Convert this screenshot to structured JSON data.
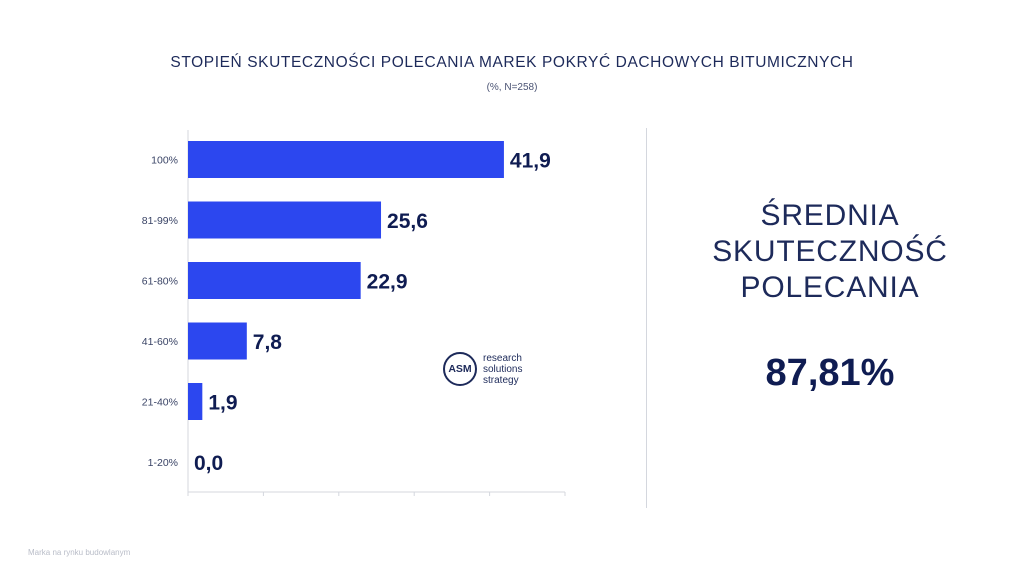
{
  "chart_data": {
    "type": "bar",
    "orientation": "horizontal",
    "title": "STOPIEŃ SKUTECZNOŚCI POLECANIA MAREK POKRYĆ DACHOWYCH BITUMICZNYCH",
    "subtitle": "(%, N=258)",
    "categories": [
      "100%",
      "81-99%",
      "61-80%",
      "41-60%",
      "21-40%",
      "1-20%"
    ],
    "values": [
      41.9,
      25.6,
      22.9,
      7.8,
      1.9,
      0.0
    ],
    "value_labels": [
      "41,9",
      "25,6",
      "22,9",
      "7,8",
      "1,9",
      "0,0"
    ],
    "xlim": [
      0,
      50
    ],
    "bar_color": "#2c47ef",
    "label_color": "#0f1c52"
  },
  "summary": {
    "label": "ŚREDNIA\nSKUTECZNOŚĆ\nPOLECANIA",
    "value": "87,81%"
  },
  "logo": {
    "abbr": "ASM",
    "line1": "research",
    "line2": "solutions",
    "line3": "strategy"
  },
  "footer": "Marka na rynku budowlanym"
}
